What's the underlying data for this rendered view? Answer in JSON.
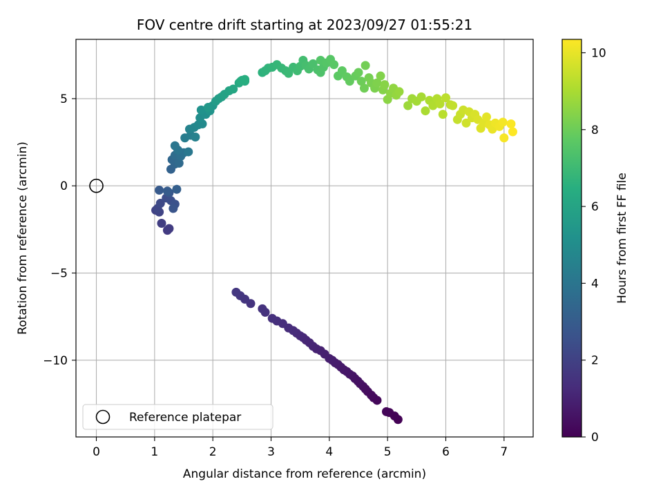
{
  "chart_data": {
    "type": "scatter",
    "title": "FOV centre drift starting at 2023/09/27 01:55:21",
    "xlabel": "Angular distance from reference (arcmin)",
    "ylabel": "Rotation from reference (arcmin)",
    "xlim": [
      -0.35,
      7.5
    ],
    "ylim": [
      -14.4,
      8.4
    ],
    "xticks": [
      0,
      1,
      2,
      3,
      4,
      5,
      6,
      7
    ],
    "yticks": [
      -10,
      -5,
      0,
      5
    ],
    "ytick_labels": [
      "−10",
      "−5",
      "0",
      "5"
    ],
    "grid": true,
    "legend": {
      "location": "lower-left",
      "entries": [
        "Reference platepar"
      ]
    },
    "reference_point": {
      "x": 0,
      "y": 0,
      "label": "Reference platepar"
    },
    "colorbar": {
      "label": "Hours from first FF file",
      "colormap": "viridis",
      "range": [
        0,
        10.35
      ],
      "ticks": [
        0,
        2,
        4,
        6,
        8,
        10
      ]
    },
    "points": [
      [
        5.18,
        -13.4,
        0.02
      ],
      [
        5.12,
        -13.2,
        0.06
      ],
      [
        5.03,
        -13.0,
        0.1
      ],
      [
        4.98,
        -12.95,
        0.12
      ],
      [
        4.82,
        -12.3,
        0.18
      ],
      [
        4.76,
        -12.15,
        0.22
      ],
      [
        4.72,
        -12.0,
        0.26
      ],
      [
        4.66,
        -11.8,
        0.3
      ],
      [
        4.62,
        -11.65,
        0.34
      ],
      [
        4.58,
        -11.5,
        0.38
      ],
      [
        4.53,
        -11.35,
        0.42
      ],
      [
        4.49,
        -11.2,
        0.46
      ],
      [
        4.44,
        -11.05,
        0.5
      ],
      [
        4.4,
        -10.9,
        0.54
      ],
      [
        4.35,
        -10.8,
        0.58
      ],
      [
        4.3,
        -10.65,
        0.62
      ],
      [
        4.25,
        -10.55,
        0.66
      ],
      [
        4.2,
        -10.4,
        0.7
      ],
      [
        4.15,
        -10.25,
        0.74
      ],
      [
        4.1,
        -10.15,
        0.78
      ],
      [
        4.05,
        -10.0,
        0.82
      ],
      [
        4.0,
        -9.9,
        0.86
      ],
      [
        3.92,
        -9.65,
        0.9
      ],
      [
        3.85,
        -9.45,
        0.94
      ],
      [
        3.78,
        -9.35,
        0.98
      ],
      [
        3.72,
        -9.2,
        1.02
      ],
      [
        3.66,
        -9.0,
        1.06
      ],
      [
        3.6,
        -8.85,
        1.1
      ],
      [
        3.55,
        -8.7,
        1.14
      ],
      [
        3.5,
        -8.6,
        1.18
      ],
      [
        3.44,
        -8.45,
        1.22
      ],
      [
        3.38,
        -8.3,
        1.26
      ],
      [
        3.3,
        -8.15,
        1.3
      ],
      [
        3.2,
        -7.9,
        1.34
      ],
      [
        3.1,
        -7.75,
        1.38
      ],
      [
        3.02,
        -7.6,
        1.42
      ],
      [
        2.9,
        -7.25,
        1.46
      ],
      [
        2.85,
        -7.05,
        1.5
      ],
      [
        2.65,
        -6.75,
        1.54
      ],
      [
        2.55,
        -6.5,
        1.58
      ],
      [
        2.47,
        -6.3,
        1.62
      ],
      [
        2.4,
        -6.1,
        1.66
      ],
      [
        1.22,
        -2.55,
        1.75
      ],
      [
        1.25,
        -2.45,
        1.82
      ],
      [
        1.12,
        -2.15,
        1.9
      ],
      [
        1.02,
        -1.4,
        2.0
      ],
      [
        1.08,
        -1.5,
        2.1
      ],
      [
        1.05,
        -1.3,
        2.2
      ],
      [
        1.1,
        -1.0,
        2.3
      ],
      [
        1.2,
        -0.7,
        2.4
      ],
      [
        1.28,
        -0.85,
        2.5
      ],
      [
        1.35,
        -1.05,
        2.6
      ],
      [
        1.32,
        -1.3,
        2.7
      ],
      [
        1.25,
        -0.4,
        2.8
      ],
      [
        1.08,
        -0.25,
        2.9
      ],
      [
        1.22,
        -0.3,
        3.0
      ],
      [
        1.38,
        -0.2,
        3.1
      ],
      [
        1.28,
        0.95,
        3.25
      ],
      [
        1.35,
        1.25,
        3.35
      ],
      [
        1.3,
        1.5,
        3.45
      ],
      [
        1.42,
        1.3,
        3.55
      ],
      [
        1.35,
        1.75,
        3.65
      ],
      [
        1.45,
        1.7,
        3.75
      ],
      [
        1.5,
        1.9,
        3.85
      ],
      [
        1.4,
        2.05,
        3.95
      ],
      [
        1.35,
        2.3,
        4.05
      ],
      [
        1.58,
        1.95,
        4.15
      ],
      [
        1.52,
        2.75,
        4.3
      ],
      [
        1.62,
        2.9,
        4.4
      ],
      [
        1.7,
        2.8,
        4.5
      ],
      [
        1.6,
        3.25,
        4.6
      ],
      [
        1.68,
        3.35,
        4.7
      ],
      [
        1.75,
        3.5,
        4.8
      ],
      [
        1.82,
        3.55,
        4.9
      ],
      [
        1.78,
        3.9,
        5.0
      ],
      [
        1.88,
        4.1,
        5.1
      ],
      [
        1.8,
        4.35,
        5.2
      ],
      [
        1.95,
        4.3,
        5.3
      ],
      [
        2.0,
        4.6,
        5.4
      ],
      [
        1.92,
        4.5,
        5.5
      ],
      [
        2.05,
        4.85,
        5.6
      ],
      [
        2.1,
        5.0,
        5.7
      ],
      [
        2.15,
        5.1,
        5.8
      ],
      [
        2.2,
        5.25,
        5.9
      ],
      [
        2.28,
        5.45,
        6.0
      ],
      [
        2.35,
        5.55,
        6.1
      ],
      [
        2.45,
        5.9,
        6.2
      ],
      [
        2.5,
        6.05,
        6.3
      ],
      [
        2.55,
        6.0,
        6.35
      ],
      [
        2.48,
        6.0,
        6.4
      ],
      [
        2.55,
        6.1,
        6.45
      ],
      [
        2.85,
        6.5,
        6.6
      ],
      [
        2.9,
        6.6,
        6.65
      ],
      [
        2.95,
        6.75,
        6.7
      ],
      [
        3.02,
        6.8,
        6.75
      ],
      [
        3.1,
        6.95,
        6.8
      ],
      [
        3.18,
        6.75,
        6.85
      ],
      [
        3.25,
        6.6,
        6.9
      ],
      [
        3.3,
        6.45,
        6.95
      ],
      [
        3.38,
        6.8,
        7.0
      ],
      [
        3.45,
        6.6,
        7.05
      ],
      [
        3.5,
        6.85,
        7.1
      ],
      [
        3.55,
        7.2,
        7.15
      ],
      [
        3.6,
        6.9,
        7.2
      ],
      [
        3.65,
        6.7,
        7.25
      ],
      [
        3.72,
        7.0,
        7.3
      ],
      [
        3.8,
        6.65,
        7.35
      ],
      [
        3.85,
        6.5,
        7.4
      ],
      [
        3.9,
        6.8,
        7.45
      ],
      [
        3.85,
        7.2,
        7.5
      ],
      [
        3.95,
        7.05,
        7.55
      ],
      [
        4.02,
        7.25,
        7.6
      ],
      [
        4.08,
        6.95,
        7.65
      ],
      [
        4.15,
        6.3,
        7.7
      ],
      [
        4.22,
        6.6,
        7.75
      ],
      [
        4.3,
        6.25,
        7.8
      ],
      [
        4.35,
        6.0,
        7.85
      ],
      [
        4.45,
        6.3,
        7.9
      ],
      [
        4.5,
        6.5,
        7.95
      ],
      [
        4.55,
        6.0,
        8.0
      ],
      [
        4.6,
        5.6,
        8.05
      ],
      [
        4.62,
        6.9,
        8.1
      ],
      [
        4.68,
        6.2,
        8.15
      ],
      [
        4.72,
        5.9,
        8.2
      ],
      [
        4.78,
        5.6,
        8.25
      ],
      [
        4.82,
        5.9,
        8.3
      ],
      [
        4.88,
        6.3,
        8.35
      ],
      [
        4.92,
        5.5,
        8.4
      ],
      [
        4.95,
        5.8,
        8.45
      ],
      [
        5.0,
        4.95,
        8.5
      ],
      [
        5.05,
        5.3,
        8.55
      ],
      [
        5.1,
        5.6,
        8.6
      ],
      [
        5.15,
        5.2,
        8.65
      ],
      [
        5.2,
        5.4,
        8.7
      ],
      [
        5.35,
        4.6,
        8.8
      ],
      [
        5.42,
        5.0,
        8.85
      ],
      [
        5.5,
        4.85,
        8.9
      ],
      [
        5.58,
        5.1,
        8.95
      ],
      [
        5.65,
        4.3,
        9.0
      ],
      [
        5.72,
        4.9,
        9.05
      ],
      [
        5.78,
        4.6,
        9.1
      ],
      [
        5.85,
        5.0,
        9.15
      ],
      [
        5.9,
        4.7,
        9.2
      ],
      [
        5.95,
        4.1,
        9.25
      ],
      [
        6.0,
        5.05,
        9.3
      ],
      [
        6.08,
        4.65,
        9.35
      ],
      [
        6.12,
        4.6,
        9.4
      ],
      [
        6.2,
        3.8,
        9.45
      ],
      [
        6.25,
        4.1,
        9.5
      ],
      [
        6.3,
        4.35,
        9.55
      ],
      [
        6.35,
        3.6,
        9.6
      ],
      [
        6.4,
        4.25,
        9.65
      ],
      [
        6.45,
        3.9,
        9.7
      ],
      [
        6.5,
        4.1,
        9.75
      ],
      [
        6.55,
        3.8,
        9.8
      ],
      [
        6.6,
        3.3,
        9.85
      ],
      [
        6.65,
        3.6,
        9.9
      ],
      [
        6.7,
        3.95,
        9.95
      ],
      [
        6.75,
        3.5,
        10.0
      ],
      [
        6.8,
        3.25,
        10.05
      ],
      [
        6.85,
        3.6,
        10.1
      ],
      [
        6.92,
        3.4,
        10.15
      ],
      [
        6.98,
        3.65,
        10.2
      ],
      [
        7.0,
        2.75,
        10.25
      ],
      [
        7.12,
        3.55,
        10.3
      ],
      [
        7.15,
        3.1,
        10.35
      ]
    ]
  }
}
